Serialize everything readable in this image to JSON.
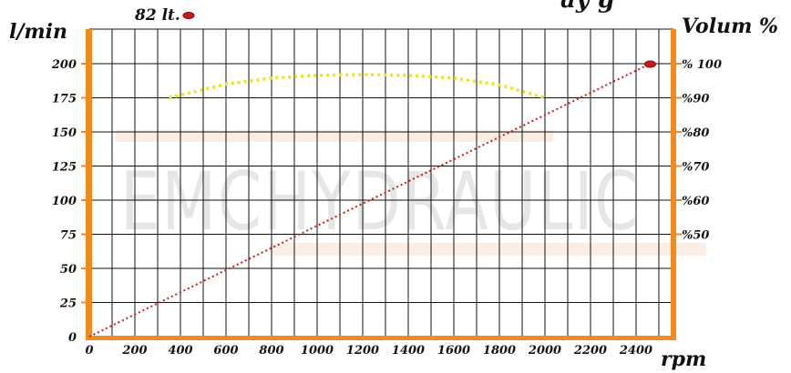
{
  "chart_data": {
    "type": "line",
    "left_axis_label": "l/min",
    "right_axis_label": "Volum %",
    "x_axis_label": "rpm",
    "top_right_text": "ay g",
    "top_annotation": "82 lt.",
    "watermark": "EMCHYDRAULIC",
    "x_ticks": [
      0,
      200,
      400,
      600,
      800,
      1000,
      1200,
      1400,
      1600,
      1800,
      2000,
      2200,
      2400
    ],
    "xlim": [
      0,
      2560
    ],
    "y_ticks": [
      0,
      25,
      50,
      75,
      100,
      125,
      150,
      175,
      200
    ],
    "ylim": [
      0,
      225
    ],
    "right_ticks": [
      {
        "label": "% 100",
        "y": 200
      },
      {
        "label": "%90",
        "y": 175
      },
      {
        "label": "%80",
        "y": 150
      },
      {
        "label": "%70",
        "y": 125
      },
      {
        "label": "%60",
        "y": 100
      },
      {
        "label": "%50",
        "y": 75
      }
    ],
    "grid": true,
    "series": [
      {
        "role": "flow",
        "color": "#d11a1a",
        "style": "dotted",
        "x": [
          0,
          2450
        ],
        "y": [
          0,
          199
        ],
        "end_marker_x": 2450,
        "end_marker_y": 199
      },
      {
        "role": "volumetric efficiency",
        "color": "#f2e21a",
        "style": "dotted",
        "x": [
          350,
          600,
          800,
          1000,
          1200,
          1400,
          1600,
          1800,
          2000
        ],
        "y": [
          175,
          185,
          189.5,
          191.5,
          192,
          191.5,
          189.5,
          184.5,
          175
        ]
      }
    ],
    "colors": {
      "axis": "#f08a1e",
      "grid": "#111111",
      "marker": "#cc1a1a"
    }
  }
}
